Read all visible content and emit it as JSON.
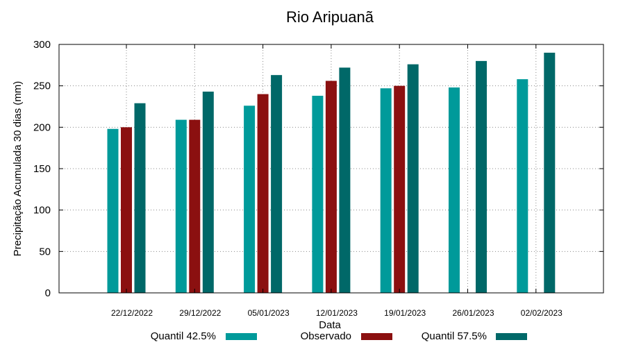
{
  "chart_data": {
    "type": "bar",
    "title": "Rio Aripuanã",
    "xlabel": "Data",
    "ylabel": "Precipitação Acumulada 30 dias (mm)",
    "ylim": [
      0,
      300
    ],
    "yticks": [
      0,
      50,
      100,
      150,
      200,
      250,
      300
    ],
    "grid": true,
    "legend_position": "bottom",
    "categories": [
      "22/12/2022",
      "29/12/2022",
      "05/01/2023",
      "12/01/2023",
      "19/01/2023",
      "26/01/2023",
      "02/02/2023"
    ],
    "series": [
      {
        "name": "Quantil 42.5%",
        "color": "#009a9a",
        "values": [
          198,
          209,
          226,
          238,
          247,
          248,
          258
        ]
      },
      {
        "name": "Observado",
        "color": "#8b1010",
        "values": [
          200,
          209,
          240,
          256,
          250,
          null,
          null
        ]
      },
      {
        "name": "Quantil 57.5%",
        "color": "#006868",
        "values": [
          229,
          243,
          263,
          272,
          276,
          280,
          290
        ]
      }
    ]
  }
}
